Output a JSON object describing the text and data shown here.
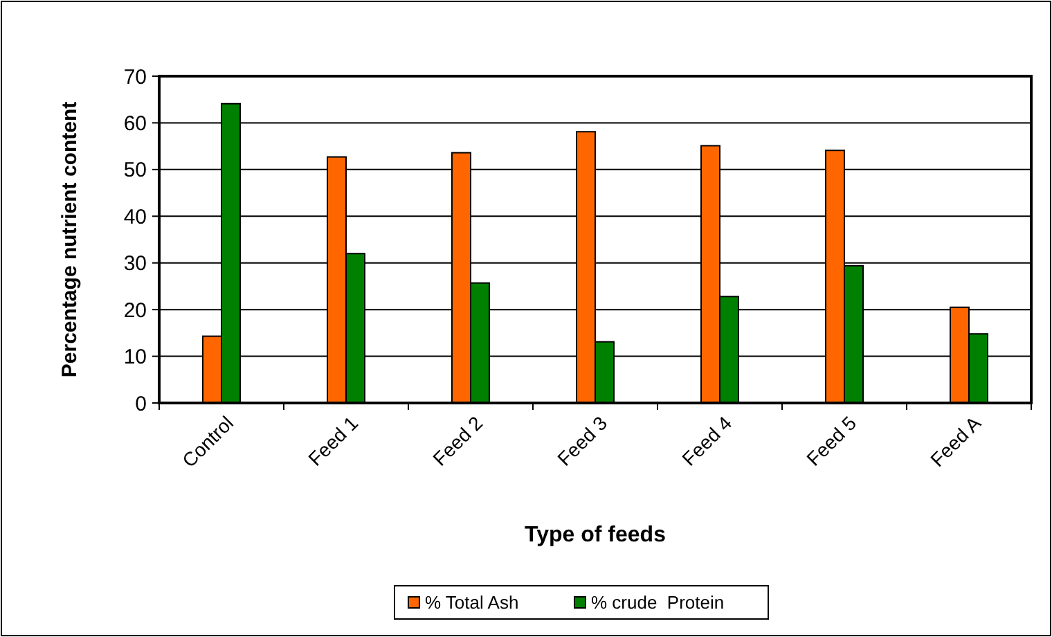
{
  "chart_data": {
    "type": "bar",
    "xlabel": "Type of feeds",
    "ylabel": "Percentage nutrient content",
    "categories": [
      "Control",
      "Feed 1",
      "Feed 2",
      "Feed 3",
      "Feed 4",
      "Feed 5",
      "Feed A"
    ],
    "series": [
      {
        "name": "% Total Ash",
        "color": "#ff6600",
        "values": [
          14.3,
          52.7,
          53.6,
          58.1,
          55.1,
          54.1,
          20.5
        ]
      },
      {
        "name": "% crude  Protein",
        "color": "#008000",
        "values": [
          64.1,
          32.0,
          25.7,
          13.1,
          22.8,
          29.4,
          14.8
        ]
      }
    ],
    "ylim": [
      0,
      70
    ],
    "yticks": [
      0,
      10,
      20,
      30,
      40,
      50,
      60,
      70
    ],
    "grid": "y",
    "legend": "bottom"
  }
}
